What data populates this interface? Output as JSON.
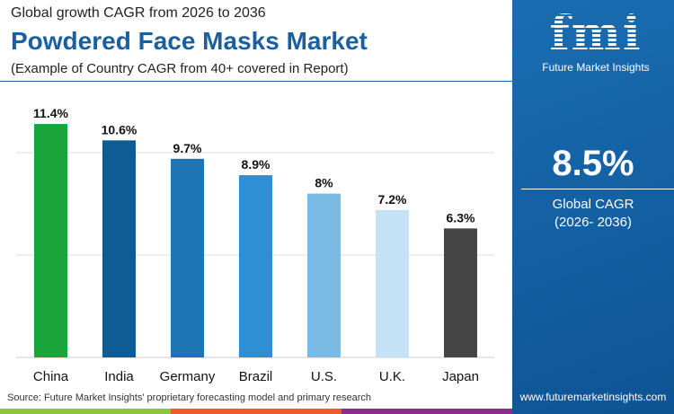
{
  "header": {
    "kicker": "Global growth CAGR from 2026 to 2036",
    "title": "Powdered Face Masks Market",
    "subtitle": "(Example of Country CAGR from 40+ covered in Report)"
  },
  "panel": {
    "brand": "Future Market Insights",
    "logo_text": "fmi",
    "cagr_value": "8.5%",
    "cagr_label": "Global CAGR",
    "cagr_period": "(2026- 2036)",
    "url": "www.futuremarketinsights.com"
  },
  "source": "Source: Future Market Insights' proprietary forecasting model and primary research",
  "colors": {
    "accent": "#1a5f9e",
    "panel": "#1565a8",
    "stripes": [
      "#8cc63f",
      "#f05a28",
      "#8e2d8e"
    ]
  },
  "chart_data": {
    "type": "bar",
    "categories": [
      "China",
      "India",
      "Germany",
      "Brazil",
      "U.S.",
      "U.K.",
      "Japan"
    ],
    "values": [
      11.4,
      10.6,
      9.7,
      8.9,
      8,
      7.2,
      6.3
    ],
    "labels": [
      "11.4%",
      "10.6%",
      "9.7%",
      "8.9%",
      "8%",
      "7.2%",
      "6.3%"
    ],
    "colors": [
      "#1aa53a",
      "#0f5b96",
      "#1f74b4",
      "#2f8fd5",
      "#7bb9e5",
      "#c4e1f5",
      "#454545"
    ],
    "ylim": [
      0,
      12
    ],
    "gridlines": [
      5,
      10
    ],
    "grid": true
  }
}
